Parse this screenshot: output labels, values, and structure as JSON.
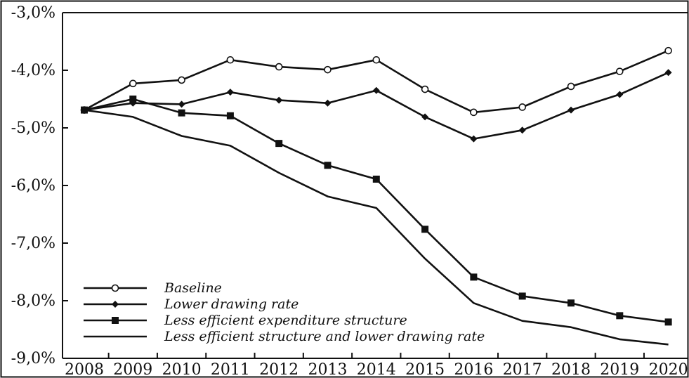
{
  "chart_data": {
    "type": "line",
    "title": "",
    "xlabel": "",
    "ylabel": "",
    "categories": [
      "2008",
      "2009",
      "2010",
      "2011",
      "2012",
      "2013",
      "2014",
      "2015",
      "2016",
      "2017",
      "2018",
      "2019",
      "2020"
    ],
    "ylim": [
      -9.0,
      -3.0
    ],
    "yticks": [
      -3.0,
      -4.0,
      -5.0,
      -6.0,
      -7.0,
      -8.0,
      -9.0
    ],
    "ytick_labels": [
      "-3,0%",
      "-4,0%",
      "-5,0%",
      "-6,0%",
      "-7,0%",
      "-8,0%",
      "-9,0%"
    ],
    "grid": false,
    "legend_position": "bottom-left",
    "line_color": "#111111",
    "series": [
      {
        "name": "Baseline",
        "marker": "open-circle",
        "values": [
          -4.69,
          -4.23,
          -4.17,
          -3.82,
          -3.94,
          -3.99,
          -3.82,
          -4.33,
          -4.73,
          -4.64,
          -4.28,
          -4.02,
          -3.66
        ]
      },
      {
        "name": "Lower drawing rate",
        "marker": "diamond",
        "values": [
          -4.69,
          -4.57,
          -4.59,
          -4.38,
          -4.52,
          -4.57,
          -4.35,
          -4.81,
          -5.19,
          -5.04,
          -4.69,
          -4.42,
          -4.04
        ]
      },
      {
        "name": "Less efficient expenditure structure",
        "marker": "square",
        "values": [
          -4.69,
          -4.5,
          -4.74,
          -4.79,
          -5.27,
          -5.65,
          -5.89,
          -6.76,
          -7.59,
          -7.92,
          -8.04,
          -8.26,
          -8.37
        ]
      },
      {
        "name": "Less efficient structure and lower drawing rate",
        "marker": "none",
        "values": [
          -4.69,
          -4.81,
          -5.14,
          -5.31,
          -5.78,
          -6.19,
          -6.39,
          -7.27,
          -8.04,
          -8.35,
          -8.46,
          -8.67,
          -8.76
        ]
      }
    ]
  }
}
